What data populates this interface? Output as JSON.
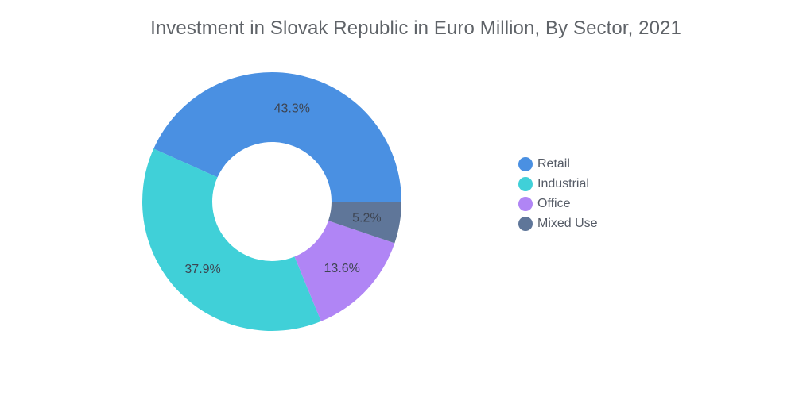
{
  "chart_data": {
    "type": "pie",
    "donut": true,
    "title": "Investment in Slovak Republic in Euro Million, By Sector, 2021",
    "categories": [
      "Retail",
      "Industrial",
      "Office",
      "Mixed Use"
    ],
    "values": [
      43.3,
      37.9,
      13.6,
      5.2
    ],
    "labels": [
      "43.3%",
      "37.9%",
      "13.6%",
      "5.2%"
    ],
    "colors": [
      "#4a90e2",
      "#40d0d8",
      "#b085f5",
      "#5f7699"
    ],
    "legend_position": "right"
  }
}
